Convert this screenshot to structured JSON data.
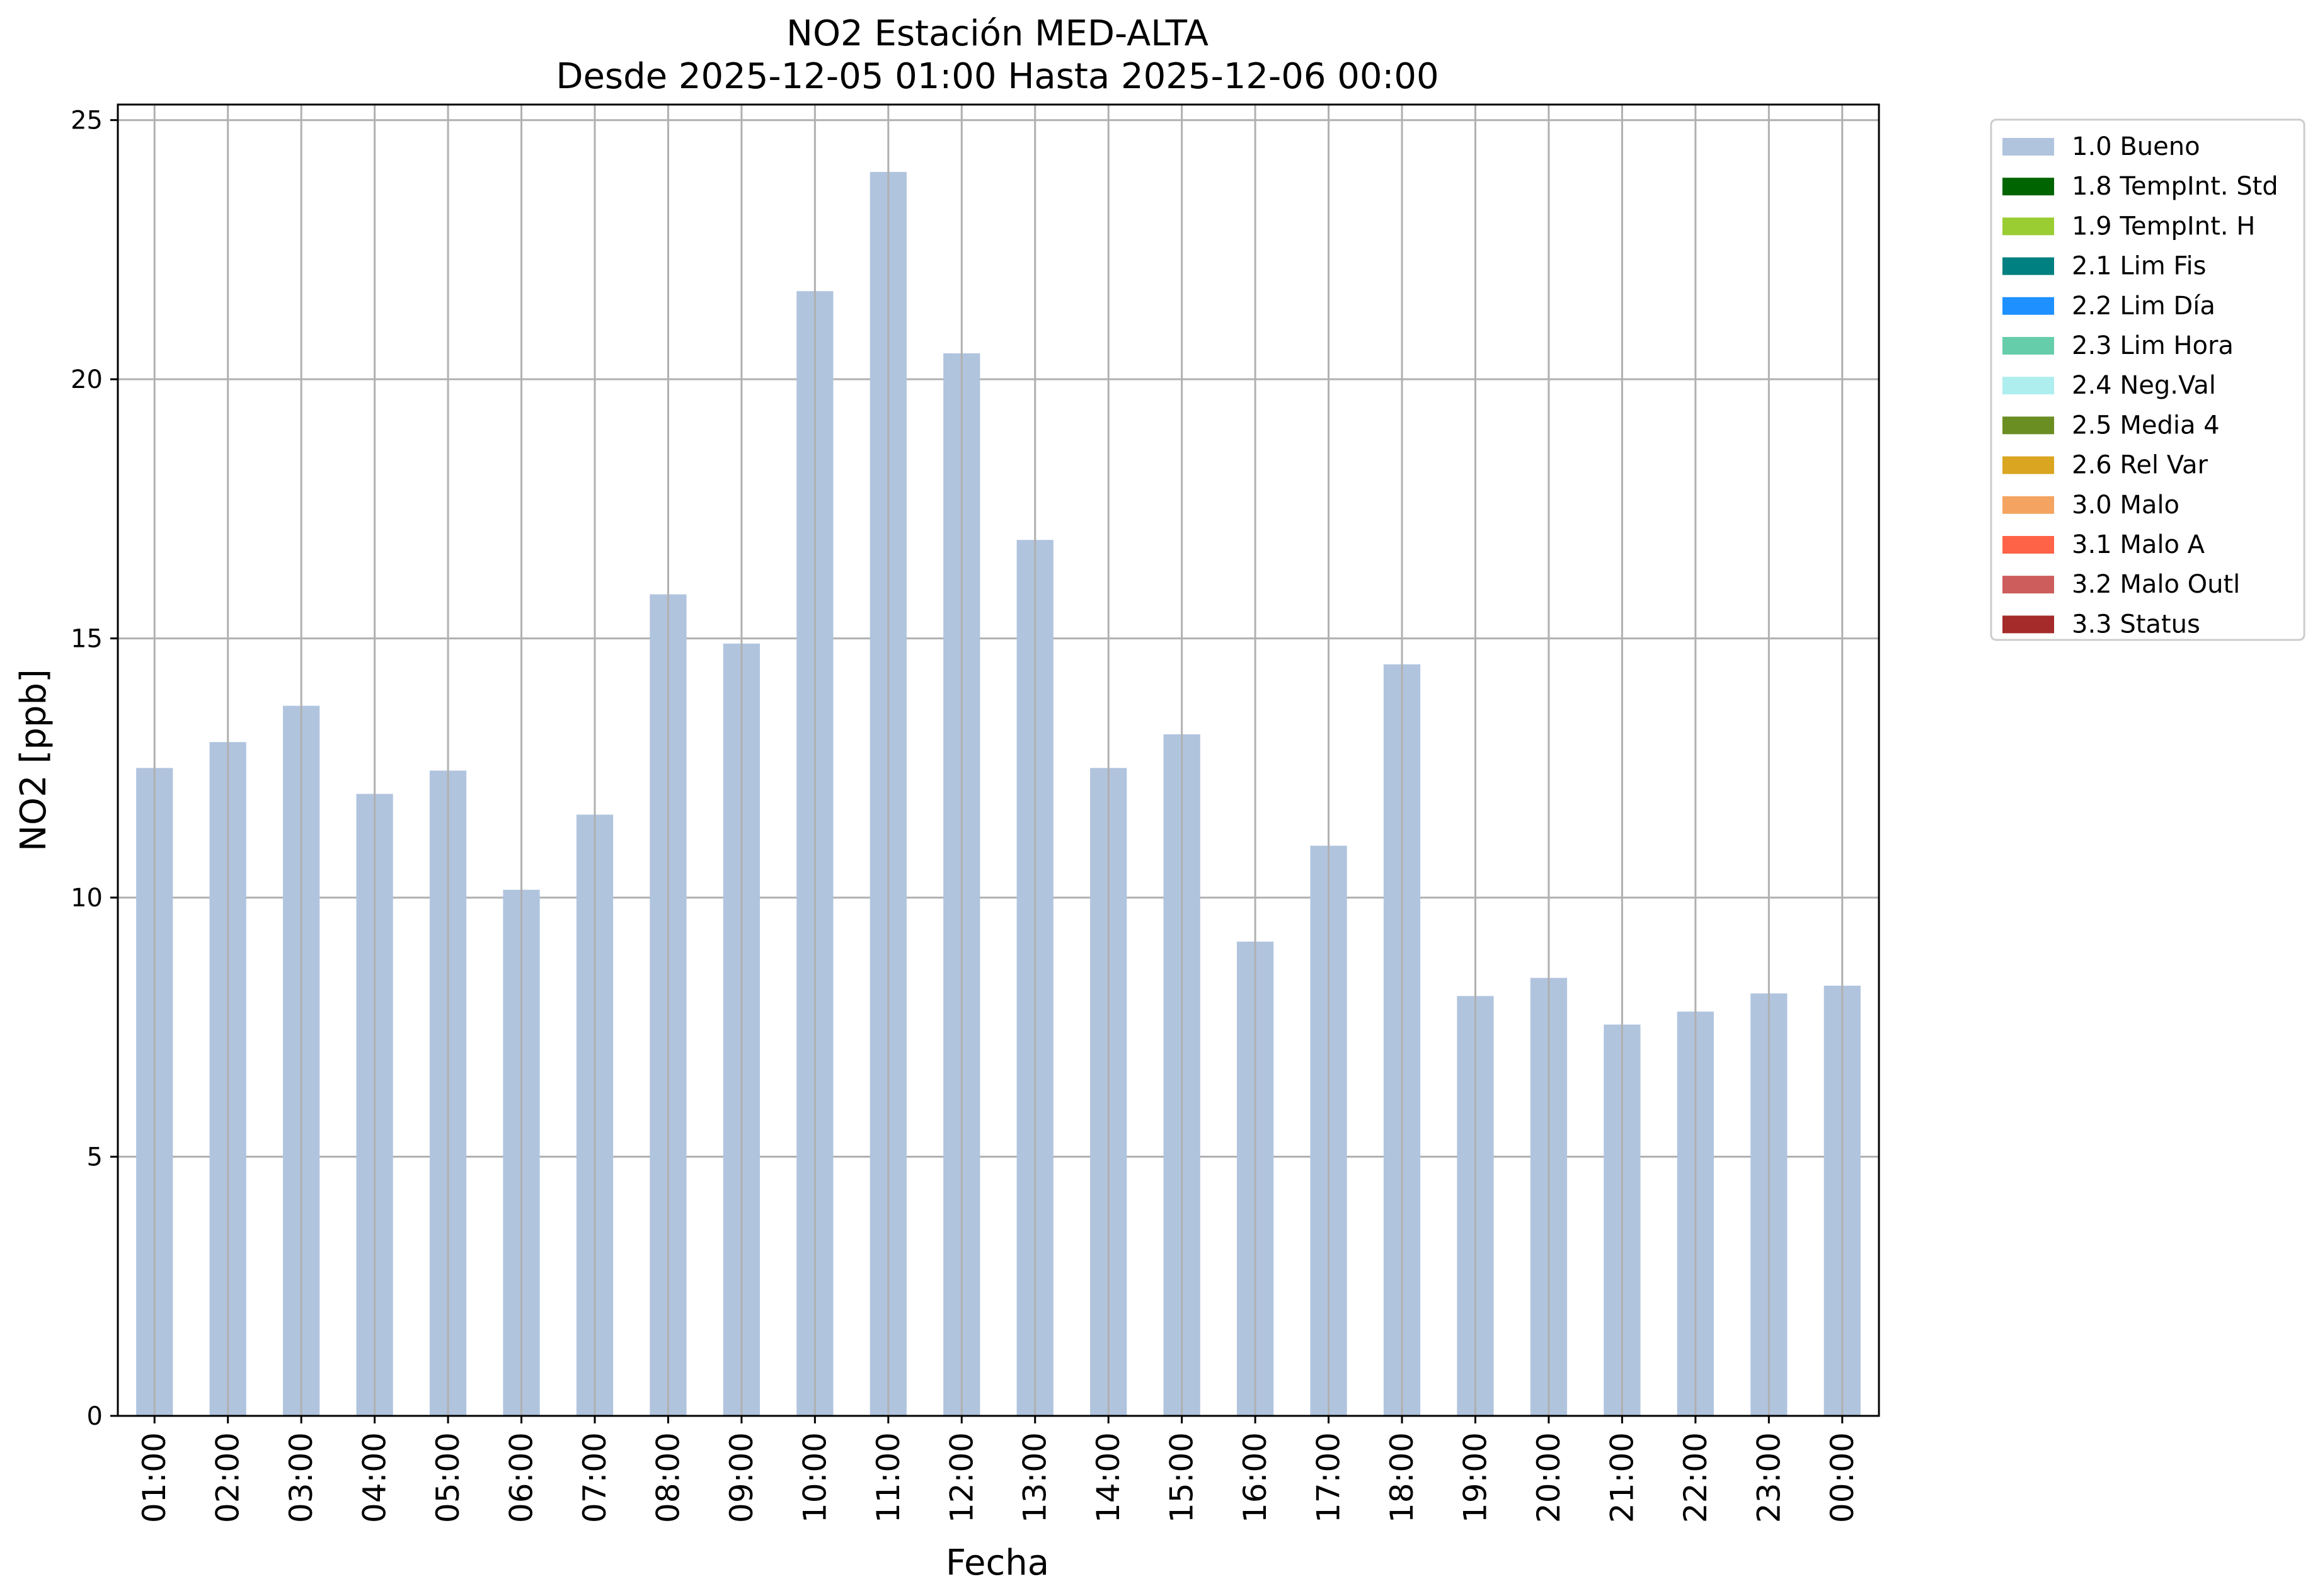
{
  "chart_data": {
    "type": "bar",
    "title_line1": "NO2 Estación MED-ALTA",
    "title_line2": "Desde 2025-12-05 01:00 Hasta 2025-12-06 00:00",
    "xlabel": "Fecha",
    "ylabel": "NO2 [ppb]",
    "ylim": [
      0,
      25.3
    ],
    "yticks": [
      0,
      5,
      10,
      15,
      20,
      25
    ],
    "grid": true,
    "legend_position": "outside-top-right",
    "categories": [
      "01:00",
      "02:00",
      "03:00",
      "04:00",
      "05:00",
      "06:00",
      "07:00",
      "08:00",
      "09:00",
      "10:00",
      "11:00",
      "12:00",
      "13:00",
      "14:00",
      "15:00",
      "16:00",
      "17:00",
      "18:00",
      "19:00",
      "20:00",
      "21:00",
      "22:00",
      "23:00",
      "00:00"
    ],
    "series": [
      {
        "name": "1.0 Bueno",
        "color": "#b0c4de",
        "values": [
          12.5,
          13.0,
          13.7,
          12.0,
          12.45,
          10.15,
          11.6,
          15.85,
          14.9,
          21.7,
          24.0,
          20.5,
          16.9,
          12.5,
          13.15,
          9.15,
          11.0,
          14.5,
          8.1,
          8.45,
          7.55,
          7.8,
          8.15,
          8.3
        ]
      }
    ],
    "legend": [
      {
        "label": "1.0 Bueno",
        "color": "#b0c4de"
      },
      {
        "label": "1.8 TempInt. Std",
        "color": "#006400"
      },
      {
        "label": "1.9 TempInt. H",
        "color": "#9acd32"
      },
      {
        "label": "2.1 Lim Fis",
        "color": "#008080"
      },
      {
        "label": "2.2 Lim Día",
        "color": "#1e90ff"
      },
      {
        "label": "2.3 Lim Hora",
        "color": "#66cdaa"
      },
      {
        "label": "2.4 Neg.Val",
        "color": "#afeeee"
      },
      {
        "label": "2.5 Media 4",
        "color": "#6b8e23"
      },
      {
        "label": "2.6 Rel Var",
        "color": "#daa520"
      },
      {
        "label": "3.0 Malo",
        "color": "#f4a460"
      },
      {
        "label": "3.1 Malo A",
        "color": "#ff6347"
      },
      {
        "label": "3.2 Malo Outl",
        "color": "#cd5c5c"
      },
      {
        "label": "3.3 Status",
        "color": "#a52a2a"
      }
    ]
  }
}
